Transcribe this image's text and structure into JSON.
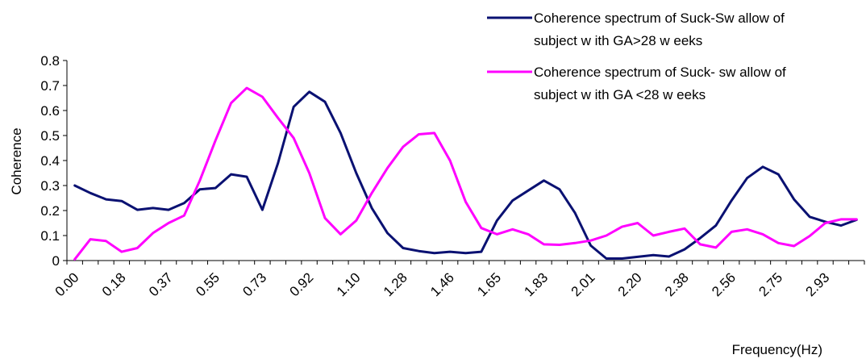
{
  "chart_data": {
    "type": "line",
    "xlabel": "Frequency(Hz)",
    "ylabel": "Coherence",
    "ylim": [
      0,
      0.8
    ],
    "yticks": [
      "0",
      "0.1",
      "0.2",
      "0.3",
      "0.4",
      "0.5",
      "0.6",
      "0.7",
      "0.8"
    ],
    "xticks": [
      "0.00",
      "0.18",
      "0.37",
      "0.55",
      "0.73",
      "0.92",
      "1.10",
      "1.28",
      "1.46",
      "1.65",
      "1.83",
      "2.01",
      "2.20",
      "2.38",
      "2.56",
      "2.75",
      "2.93"
    ],
    "grid": false,
    "legend_position": "top-right",
    "series": [
      {
        "name": "Coherence spectrum of Suck-Sw allow of subject w ith GA>28 w eeks",
        "legend_lines": [
          "Coherence spectrum of Suck-Sw allow of",
          "subject w ith GA>28 w eeks"
        ],
        "color": "#0a1172",
        "values": [
          0.3,
          0.27,
          0.245,
          0.238,
          0.203,
          0.21,
          0.203,
          0.23,
          0.285,
          0.29,
          0.345,
          0.335,
          0.203,
          0.39,
          0.615,
          0.675,
          0.635,
          0.51,
          0.35,
          0.21,
          0.11,
          0.05,
          0.038,
          0.03,
          0.035,
          0.03,
          0.035,
          0.16,
          0.24,
          0.28,
          0.32,
          0.285,
          0.19,
          0.06,
          0.008,
          0.008,
          0.015,
          0.022,
          0.016,
          0.045,
          0.09,
          0.14,
          0.24,
          0.33,
          0.375,
          0.345,
          0.245,
          0.175,
          0.155,
          0.14,
          0.163
        ]
      },
      {
        "name": "Coherence spectrum of Suck- sw allow of subject w ith GA <28 w eeks",
        "legend_lines": [
          "Coherence spectrum of Suck- sw allow of",
          "subject w ith GA <28 w eeks"
        ],
        "color": "#ff00ff",
        "values": [
          0.005,
          0.085,
          0.078,
          0.035,
          0.05,
          0.11,
          0.15,
          0.18,
          0.32,
          0.48,
          0.63,
          0.69,
          0.655,
          0.57,
          0.49,
          0.35,
          0.17,
          0.105,
          0.16,
          0.27,
          0.37,
          0.455,
          0.505,
          0.51,
          0.4,
          0.235,
          0.13,
          0.105,
          0.125,
          0.105,
          0.065,
          0.063,
          0.07,
          0.08,
          0.1,
          0.135,
          0.15,
          0.1,
          0.115,
          0.128,
          0.065,
          0.052,
          0.115,
          0.125,
          0.105,
          0.07,
          0.058,
          0.098,
          0.15,
          0.165,
          0.165
        ]
      }
    ]
  }
}
